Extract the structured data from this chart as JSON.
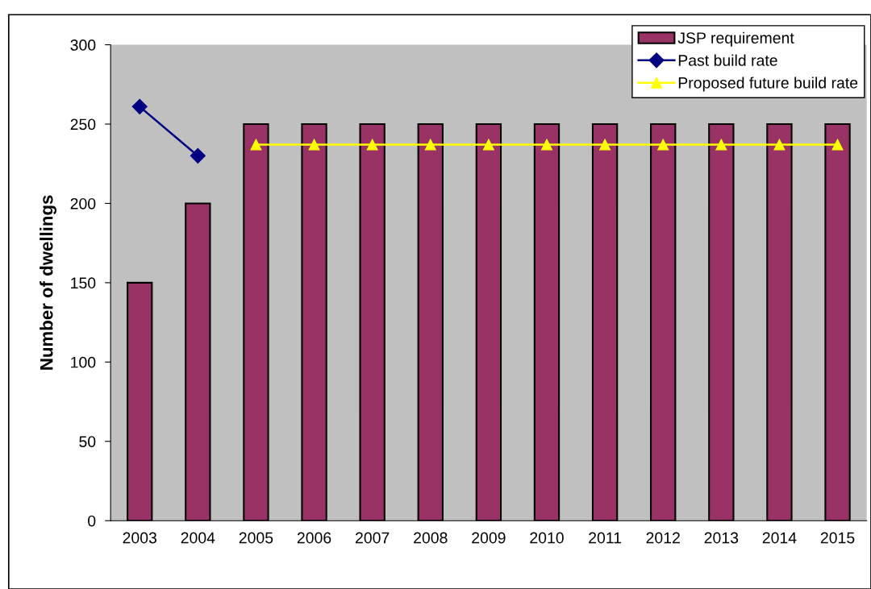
{
  "chart_data": {
    "type": "bar",
    "ylabel": "Number of dwellings",
    "categories": [
      "2003",
      "2004",
      "2005",
      "2006",
      "2007",
      "2008",
      "2009",
      "2010",
      "2011",
      "2012",
      "2013",
      "2014",
      "2015"
    ],
    "series": [
      {
        "name": "JSP requirement",
        "color": "#993366",
        "values": [
          150,
          200,
          250,
          250,
          250,
          250,
          250,
          250,
          250,
          250,
          250,
          250,
          250
        ]
      },
      {
        "name": "Past build rate",
        "type": "line",
        "color": "#000080",
        "marker": "diamond",
        "values": [
          261,
          230,
          null,
          null,
          null,
          null,
          null,
          null,
          null,
          null,
          null,
          null,
          null
        ]
      },
      {
        "name": "Proposed future build rate",
        "type": "line",
        "color": "#ffff00",
        "marker": "triangle",
        "values": [
          null,
          null,
          237,
          237,
          237,
          237,
          237,
          237,
          237,
          237,
          237,
          237,
          237
        ]
      }
    ],
    "ylim": [
      0,
      300
    ],
    "yticks": [
      0,
      50,
      100,
      150,
      200,
      250,
      300
    ],
    "grid": false,
    "legend": "top right"
  }
}
